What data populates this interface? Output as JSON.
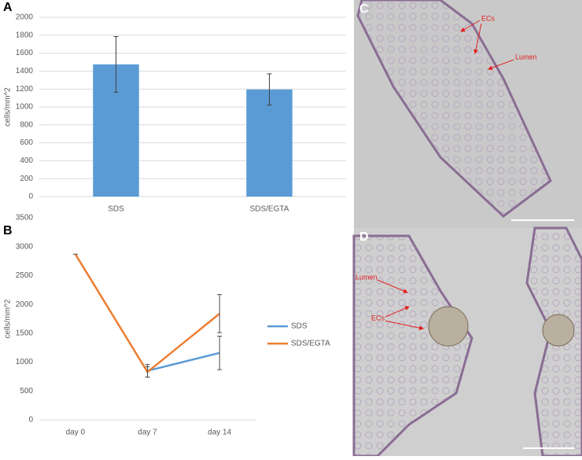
{
  "chart_data": [
    {
      "type": "bar",
      "panel": "A",
      "ylabel": "cells/mm^2",
      "categories": [
        "SDS",
        "SDS/EGTA"
      ],
      "values": [
        1475,
        1195
      ],
      "errors": [
        310,
        175
      ],
      "color": "#5b9bd5",
      "ylim": [
        0,
        2000
      ],
      "yticks": [
        0,
        200,
        400,
        600,
        800,
        1000,
        1200,
        1400,
        1600,
        1800,
        2000
      ],
      "grid": true
    },
    {
      "type": "line",
      "panel": "B",
      "ylabel": "cells/mm^2",
      "categories": [
        "day 0",
        "day 7",
        "day 14"
      ],
      "series": [
        {
          "name": "SDS",
          "color": "#5b9bd5",
          "values": [
            null,
            850,
            1160
          ],
          "errors": [
            null,
            110,
            290
          ]
        },
        {
          "name": "SDS/EGTA",
          "color": "#ed7d31",
          "values": [
            2870,
            830,
            1840
          ],
          "errors": [
            0,
            90,
            330
          ]
        }
      ],
      "ylim": [
        0,
        3500
      ],
      "yticks": [
        0,
        500,
        1000,
        1500,
        2000,
        2500,
        3000,
        3500
      ],
      "legend": "right"
    }
  ],
  "images": [
    {
      "panel": "C",
      "annotations": [
        "ECs",
        "Lumen"
      ]
    },
    {
      "panel": "D",
      "annotations": [
        "Lumen",
        "ECs"
      ]
    }
  ]
}
